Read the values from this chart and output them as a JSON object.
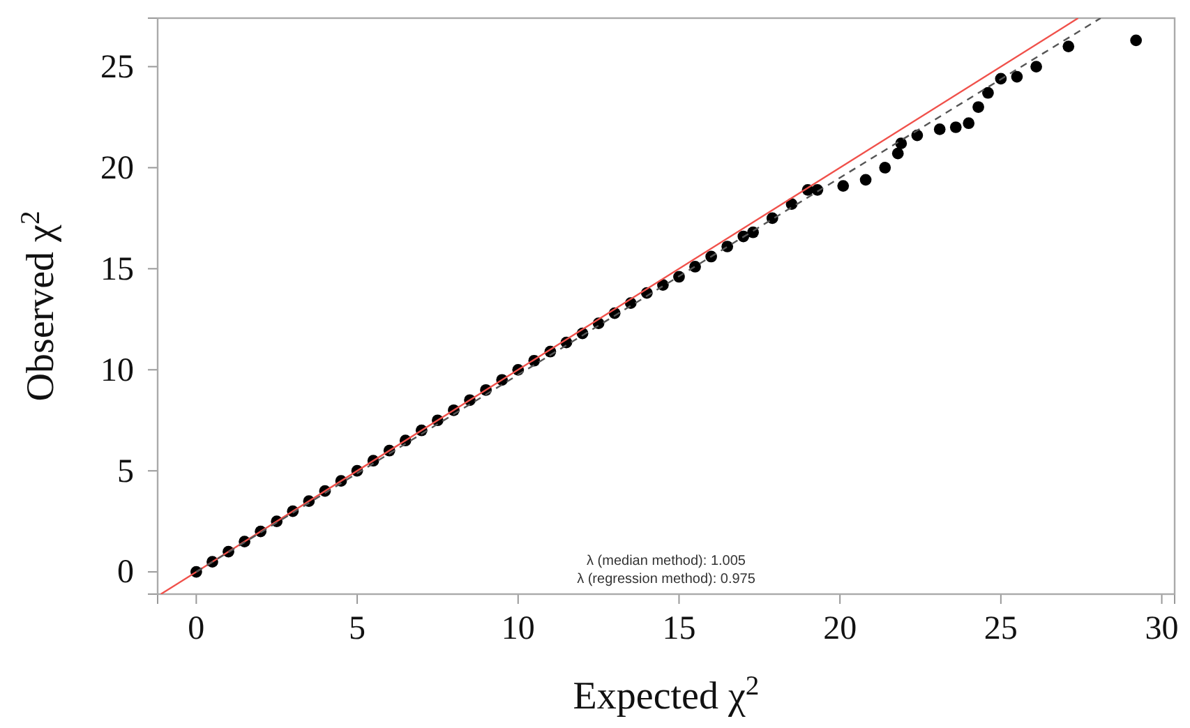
{
  "chart_data": {
    "type": "scatter",
    "xlabel": "Expected χ$^{2}$",
    "ylabel": "Observed χ$^{2}$",
    "xlim": [
      -1.2,
      30.4
    ],
    "ylim": [
      -1.1,
      27.4
    ],
    "xticks": [
      0,
      5,
      10,
      15,
      20,
      25,
      30
    ],
    "yticks": [
      0,
      5,
      10,
      15,
      20,
      25
    ],
    "grid": false,
    "marker": "circle",
    "annotations": [
      "λ (median method): 1.005",
      "λ (regression method): 0.975"
    ],
    "series": [
      {
        "color": "#000000",
        "x": [
          0,
          0.5,
          1,
          1.5,
          2,
          2.5,
          3,
          3.5,
          4,
          4.5,
          5,
          5.5,
          6,
          6.5,
          7,
          7.5,
          8,
          8.5,
          9,
          9.5,
          10,
          10.5,
          11,
          11.5,
          12,
          12.5,
          13,
          13.5,
          14,
          14.5,
          15,
          15.5,
          16,
          16.5,
          17,
          17.3,
          17.9,
          18.5,
          19.0,
          19.3,
          20.1,
          20.8,
          21.4,
          21.8,
          21.9,
          22.4,
          23.1,
          23.6,
          24.0,
          24.3,
          24.6,
          25.0,
          25.5,
          26.1,
          27.1,
          29.2
        ],
        "values": [
          0,
          0.5,
          1,
          1.5,
          2,
          2.5,
          3,
          3.5,
          4,
          4.5,
          5,
          5.5,
          6,
          6.5,
          7,
          7.5,
          8,
          8.5,
          9,
          9.5,
          10,
          10.45,
          10.9,
          11.35,
          11.8,
          12.3,
          12.8,
          13.3,
          13.8,
          14.2,
          14.6,
          15.1,
          15.6,
          16.1,
          16.6,
          16.8,
          17.5,
          18.2,
          18.9,
          18.9,
          19.1,
          19.4,
          20.0,
          20.7,
          21.2,
          21.6,
          21.9,
          22.0,
          22.2,
          23.0,
          23.7,
          24.4,
          24.5,
          25.0,
          26.0,
          26.3
        ]
      },
      {
        "type": "line",
        "color": "#f0504a",
        "line_style": "solid",
        "marker": "none",
        "x": [
          -1.1,
          27.4
        ],
        "values": [
          -1.1,
          27.4
        ]
      },
      {
        "type": "line",
        "color": "#555555",
        "line_style": "dashed",
        "marker": "none",
        "x": [
          0,
          28.1
        ],
        "values": [
          0,
          27.4
        ]
      }
    ]
  }
}
